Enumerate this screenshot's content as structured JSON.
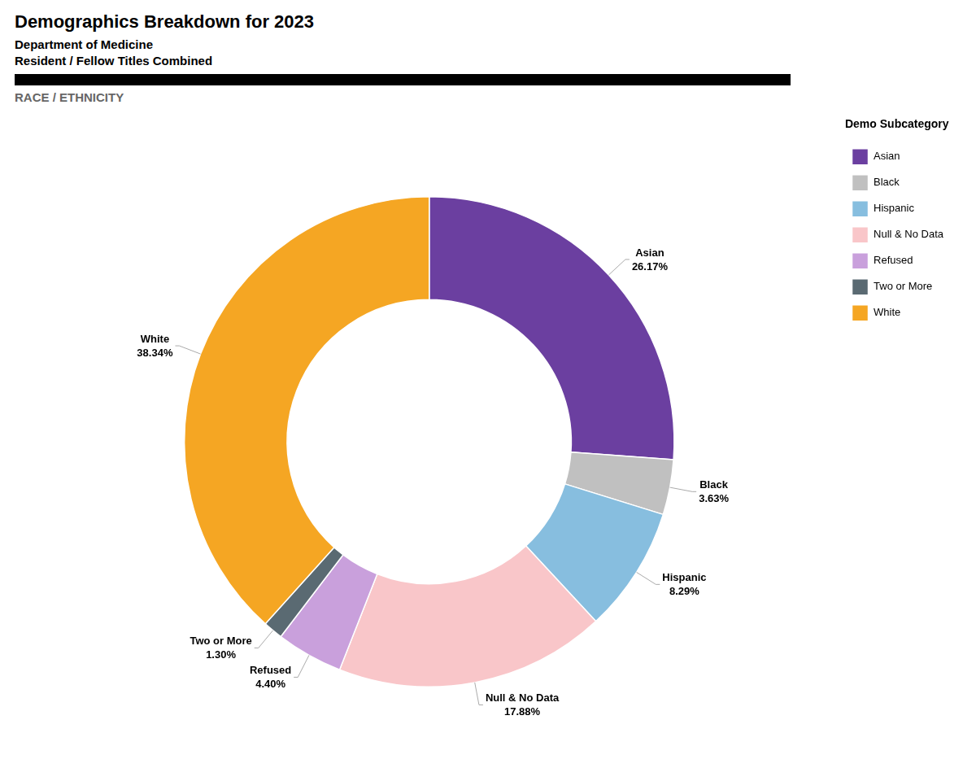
{
  "chart_data": {
    "type": "doughnut",
    "title": "Demographics Breakdown for 2023",
    "subtitle": [
      "Department of Medicine",
      "Resident / Fellow Titles Combined"
    ],
    "annotations": [
      "RACE / ETHNICITY"
    ],
    "legend_title": "Demo Subcategory",
    "categories": [
      "Asian",
      "Black",
      "Hispanic",
      "Null & No Data",
      "Refused",
      "Two or More",
      "White"
    ],
    "values": [
      26.17,
      3.63,
      8.29,
      17.88,
      4.4,
      1.3,
      38.34
    ],
    "value_labels": [
      "26.17%",
      "3.63%",
      "8.29%",
      "17.88%",
      "4.40%",
      "1.30%",
      "38.34%"
    ],
    "colors": [
      "#6B3FA0",
      "#C0C0C0",
      "#87BEDF",
      "#F9C6C9",
      "#C9A0DC",
      "#5A6A72",
      "#F5A623"
    ],
    "data_labels": true,
    "legend": "right"
  }
}
